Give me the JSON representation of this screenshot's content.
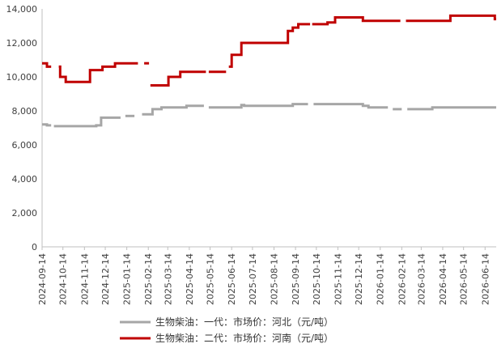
{
  "chart_data": {
    "type": "line",
    "title": "",
    "xlabel": "",
    "ylabel": "",
    "ylim": [
      0,
      14000
    ],
    "yticks": [
      0,
      2000,
      4000,
      6000,
      8000,
      10000,
      12000,
      14000
    ],
    "ytick_labels": [
      "0",
      "2,000",
      "4,000",
      "6,000",
      "8,000",
      "10,000",
      "12,000",
      "14,000"
    ],
    "xlim": [
      "2024-09-14",
      "2026-06-30"
    ],
    "xtick_labels": [
      "2024-09-14",
      "2024-10-14",
      "2024-11-14",
      "2024-12-14",
      "2025-01-14",
      "2025-02-14",
      "2025-03-14",
      "2025-04-14",
      "2025-05-14",
      "2025-06-14",
      "2025-07-14",
      "2025-08-14",
      "2025-09-14",
      "2025-10-14",
      "2025-11-14",
      "2025-12-14",
      "2026-01-14",
      "2026-02-14",
      "2026-03-14",
      "2026-04-14",
      "2026-05-14",
      "2026-06-14"
    ],
    "grid": false,
    "legend_position": "bottom",
    "series": [
      {
        "name": "生物柴油：一代：市场价：河北（元/吨）",
        "color": "#a6a6a6",
        "segments": [
          [
            [
              "2024-09-14",
              7200
            ],
            [
              "2024-09-21",
              7200
            ],
            [
              "2024-09-21",
              7150
            ],
            [
              "2024-09-27",
              7150
            ]
          ],
          [
            [
              "2024-10-01",
              7100
            ],
            [
              "2024-12-01",
              7100
            ],
            [
              "2024-12-01",
              7150
            ],
            [
              "2024-12-08",
              7150
            ],
            [
              "2024-12-08",
              7600
            ],
            [
              "2025-01-05",
              7600
            ]
          ],
          [
            [
              "2025-01-12",
              7700
            ],
            [
              "2025-01-25",
              7700
            ]
          ],
          [
            [
              "2025-02-05",
              7800
            ],
            [
              "2025-02-20",
              7800
            ],
            [
              "2025-02-20",
              8100
            ],
            [
              "2025-03-05",
              8100
            ],
            [
              "2025-03-05",
              8200
            ],
            [
              "2025-04-10",
              8200
            ],
            [
              "2025-04-10",
              8300
            ],
            [
              "2025-05-05",
              8300
            ]
          ],
          [
            [
              "2025-05-12",
              8200
            ],
            [
              "2025-06-28",
              8200
            ],
            [
              "2025-06-28",
              8350
            ],
            [
              "2025-07-02",
              8350
            ],
            [
              "2025-07-02",
              8300
            ],
            [
              "2025-09-10",
              8300
            ],
            [
              "2025-09-10",
              8400
            ],
            [
              "2025-10-02",
              8400
            ]
          ],
          [
            [
              "2025-10-10",
              8400
            ],
            [
              "2025-12-20",
              8400
            ],
            [
              "2025-12-20",
              8300
            ],
            [
              "2025-12-28",
              8300
            ],
            [
              "2025-12-28",
              8200
            ],
            [
              "2026-01-25",
              8200
            ]
          ],
          [
            [
              "2026-02-01",
              8100
            ],
            [
              "2026-02-14",
              8100
            ]
          ],
          [
            [
              "2026-02-22",
              8100
            ],
            [
              "2026-03-30",
              8100
            ],
            [
              "2026-03-30",
              8200
            ],
            [
              "2026-06-30",
              8200
            ]
          ]
        ]
      },
      {
        "name": "生物柴油：二代：市场价：河南（元/吨）",
        "color": "#c00000",
        "segments": [
          [
            [
              "2024-09-14",
              10800
            ],
            [
              "2024-09-21",
              10800
            ],
            [
              "2024-09-21",
              10600
            ],
            [
              "2024-09-27",
              10600
            ]
          ],
          [
            [
              "2024-10-08",
              10600
            ],
            [
              "2024-10-10",
              10600
            ],
            [
              "2024-10-10",
              10000
            ],
            [
              "2024-10-18",
              10000
            ],
            [
              "2024-10-18",
              9700
            ],
            [
              "2024-11-22",
              9700
            ],
            [
              "2024-11-22",
              10400
            ],
            [
              "2024-12-10",
              10400
            ],
            [
              "2024-12-10",
              10600
            ],
            [
              "2024-12-28",
              10600
            ],
            [
              "2024-12-28",
              10800
            ],
            [
              "2025-01-30",
              10800
            ]
          ],
          [
            [
              "2025-02-08",
              10800
            ],
            [
              "2025-02-15",
              10800
            ]
          ],
          [
            [
              "2025-02-17",
              9500
            ],
            [
              "2025-03-15",
              9500
            ],
            [
              "2025-03-15",
              10000
            ],
            [
              "2025-04-01",
              10000
            ],
            [
              "2025-04-01",
              10300
            ],
            [
              "2025-05-08",
              10300
            ]
          ],
          [
            [
              "2025-05-12",
              10300
            ],
            [
              "2025-06-06",
              10300
            ]
          ],
          [
            [
              "2025-06-10",
              10600
            ],
            [
              "2025-06-14",
              10600
            ],
            [
              "2025-06-14",
              11300
            ],
            [
              "2025-06-28",
              11300
            ],
            [
              "2025-06-28",
              12000
            ],
            [
              "2025-09-03",
              12000
            ],
            [
              "2025-09-03",
              12700
            ],
            [
              "2025-09-10",
              12700
            ],
            [
              "2025-09-10",
              12900
            ],
            [
              "2025-09-18",
              12900
            ],
            [
              "2025-09-18",
              13100
            ],
            [
              "2025-10-05",
              13100
            ]
          ],
          [
            [
              "2025-10-08",
              13100
            ],
            [
              "2025-10-30",
              13100
            ],
            [
              "2025-10-30",
              13200
            ],
            [
              "2025-11-10",
              13200
            ],
            [
              "2025-11-10",
              13500
            ],
            [
              "2025-12-20",
              13500
            ],
            [
              "2025-12-20",
              13300
            ],
            [
              "2026-02-12",
              13300
            ]
          ],
          [
            [
              "2026-02-20",
              13300
            ],
            [
              "2026-04-25",
              13300
            ],
            [
              "2026-04-25",
              13600
            ],
            [
              "2026-06-28",
              13600
            ],
            [
              "2026-06-28",
              13400
            ],
            [
              "2026-06-30",
              13400
            ]
          ]
        ]
      }
    ]
  }
}
